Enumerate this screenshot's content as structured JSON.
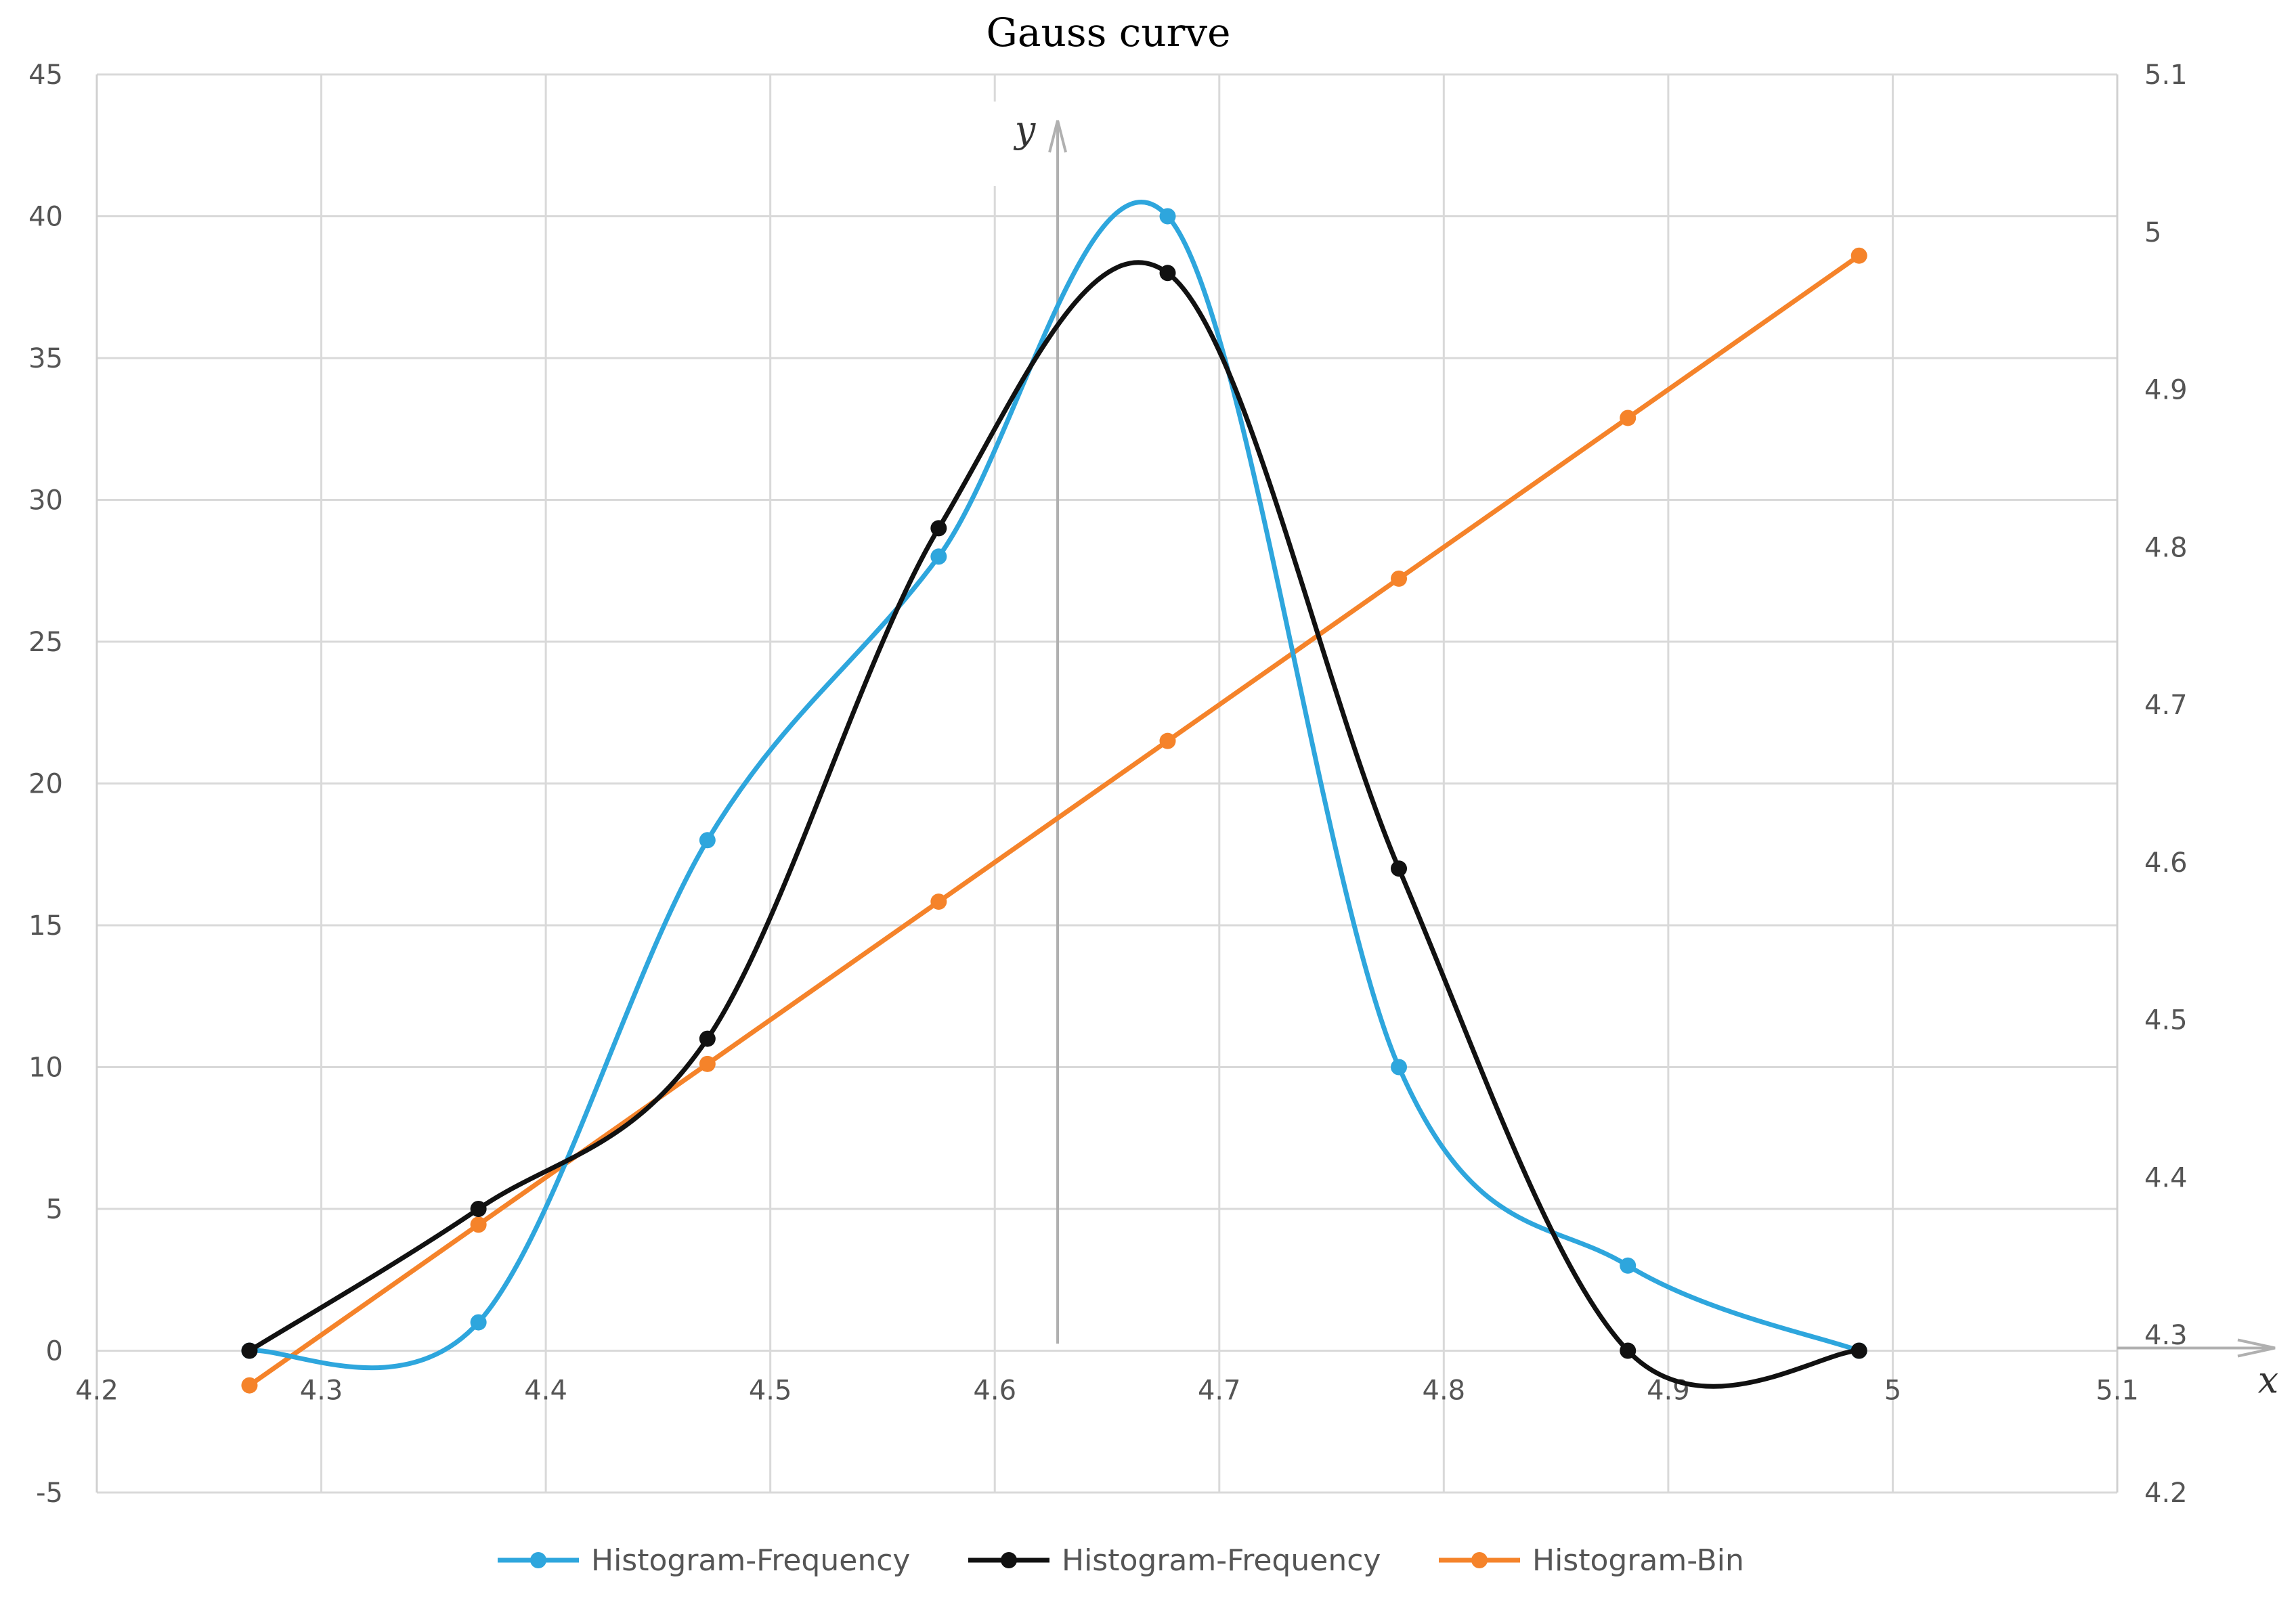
{
  "chart_data": {
    "type": "line",
    "title": "Gauss curve",
    "xlim": [
      4.2,
      5.1
    ],
    "x_ticks": [
      "4.2",
      "4.3",
      "4.4",
      "4.5",
      "4.6",
      "4.7",
      "4.8",
      "4.9",
      "5",
      "5.1"
    ],
    "ylim_left": [
      -5,
      45
    ],
    "y_left_ticks": [
      "-5",
      "0",
      "5",
      "10",
      "15",
      "20",
      "25",
      "30",
      "35",
      "40",
      "45"
    ],
    "ylim_right": [
      4.2,
      5.1
    ],
    "y_right_ticks": [
      "4.2",
      "4.3",
      "4.4",
      "4.5",
      "4.6",
      "4.7",
      "4.8",
      "4.9",
      "5",
      "5.1"
    ],
    "x_axis_letter": "x",
    "y_axis_letter": "y",
    "grid": true,
    "smoothed": true,
    "legend_position": "bottom",
    "series": [
      {
        "name": "Histogram-Frequency",
        "axis": "left",
        "color": "#2ea6dd",
        "smooth": true,
        "x": [
          4.268,
          4.37,
          4.472,
          4.575,
          4.677,
          4.78,
          4.882,
          4.985
        ],
        "y": [
          0,
          1,
          18,
          28,
          40,
          10,
          3,
          0
        ]
      },
      {
        "name": "Histogram-Frequency",
        "axis": "left",
        "color": "#111111",
        "smooth": true,
        "x": [
          4.268,
          4.37,
          4.472,
          4.575,
          4.677,
          4.78,
          4.882,
          4.985
        ],
        "y": [
          0,
          5,
          11,
          29,
          38,
          17,
          0,
          0
        ]
      },
      {
        "name": "Histogram-Bin",
        "axis": "right",
        "color": "#f5832a",
        "smooth": false,
        "x": [
          4.268,
          4.37,
          4.472,
          4.575,
          4.677,
          4.78,
          4.882,
          4.985
        ],
        "y": [
          4.268,
          4.37,
          4.472,
          4.575,
          4.677,
          4.78,
          4.882,
          4.985
        ]
      }
    ]
  }
}
